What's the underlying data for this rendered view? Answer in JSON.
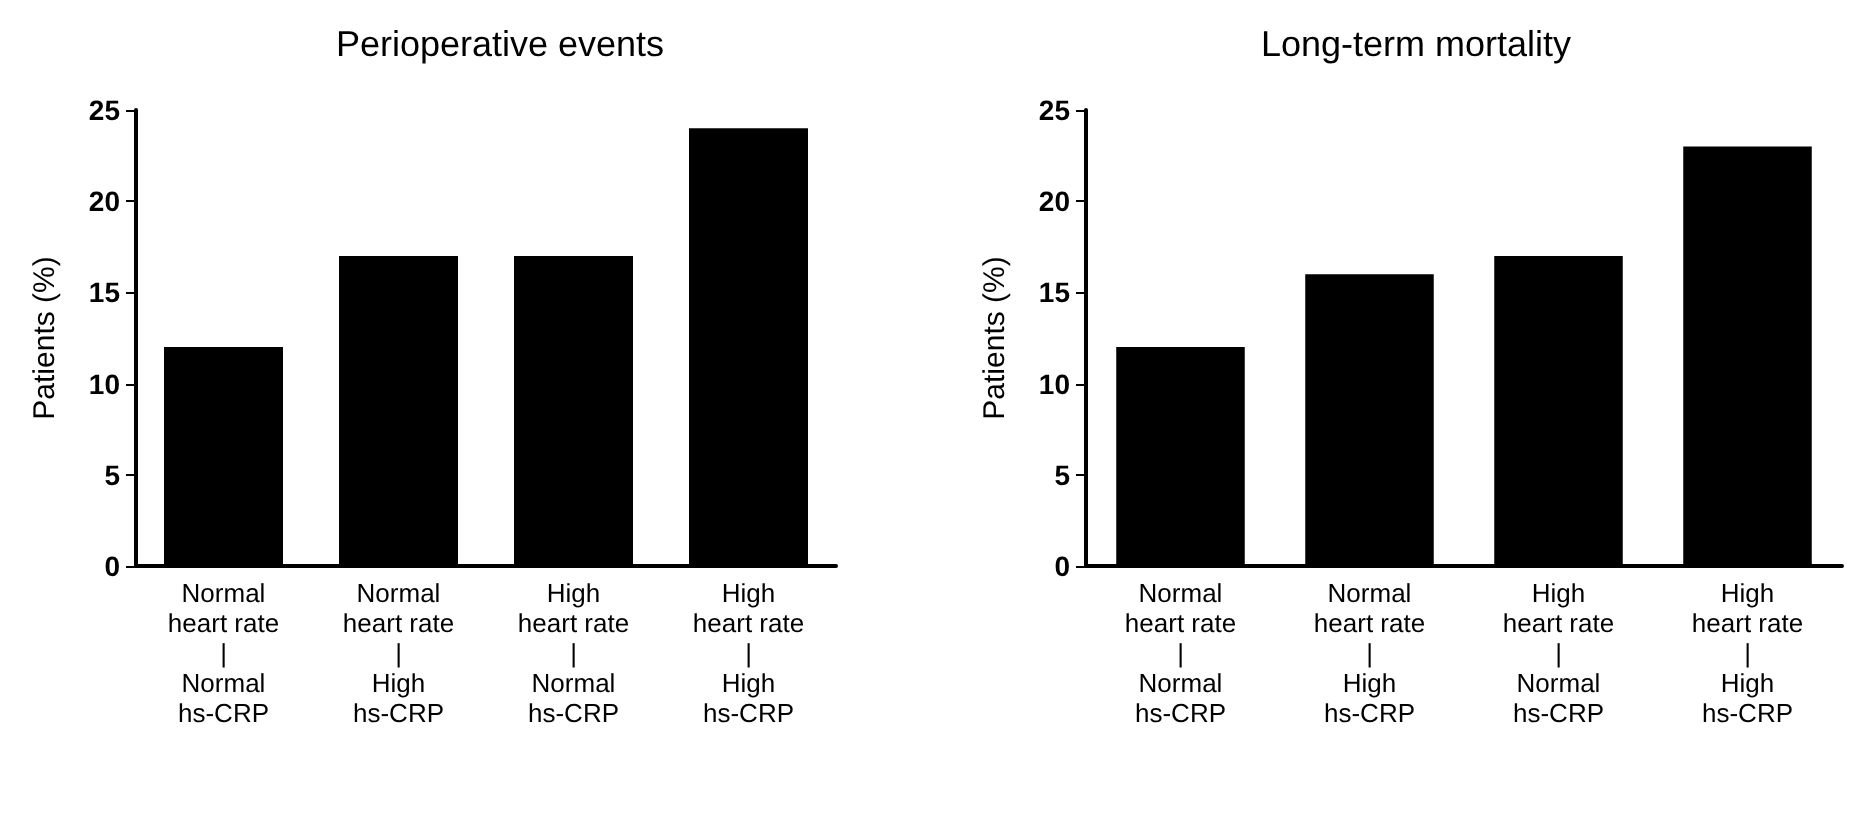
{
  "chart_data": [
    {
      "type": "bar",
      "title": "Perioperative events",
      "ylabel": "Patients (%)",
      "categories": [
        "Normal\nheart rate\n|\nNormal\nhs-CRP",
        "Normal\nheart rate\n|\nHigh\nhs-CRP",
        "High\nheart rate\n|\nNormal\nhs-CRP",
        "High\nheart rate\n|\nHigh\nhs-CRP"
      ],
      "values": [
        12,
        17,
        17,
        24
      ],
      "color": "#000000",
      "ylim": [
        0,
        25
      ],
      "yticks": [
        0,
        5,
        10,
        15,
        20,
        25
      ]
    },
    {
      "type": "bar",
      "title": "Long-term mortality",
      "ylabel": "Patients (%)",
      "categories": [
        "Normal\nheart rate\n|\nNormal\nhs-CRP",
        "Normal\nheart rate\n|\nHigh\nhs-CRP",
        "High\nheart rate\n|\nNormal\nhs-CRP",
        "High\nheart rate\n|\nHigh\nhs-CRP"
      ],
      "values": [
        12,
        16,
        17,
        23
      ],
      "color": "#000000",
      "ylim": [
        0,
        25
      ],
      "yticks": [
        0,
        5,
        10,
        15,
        20,
        25
      ]
    }
  ]
}
